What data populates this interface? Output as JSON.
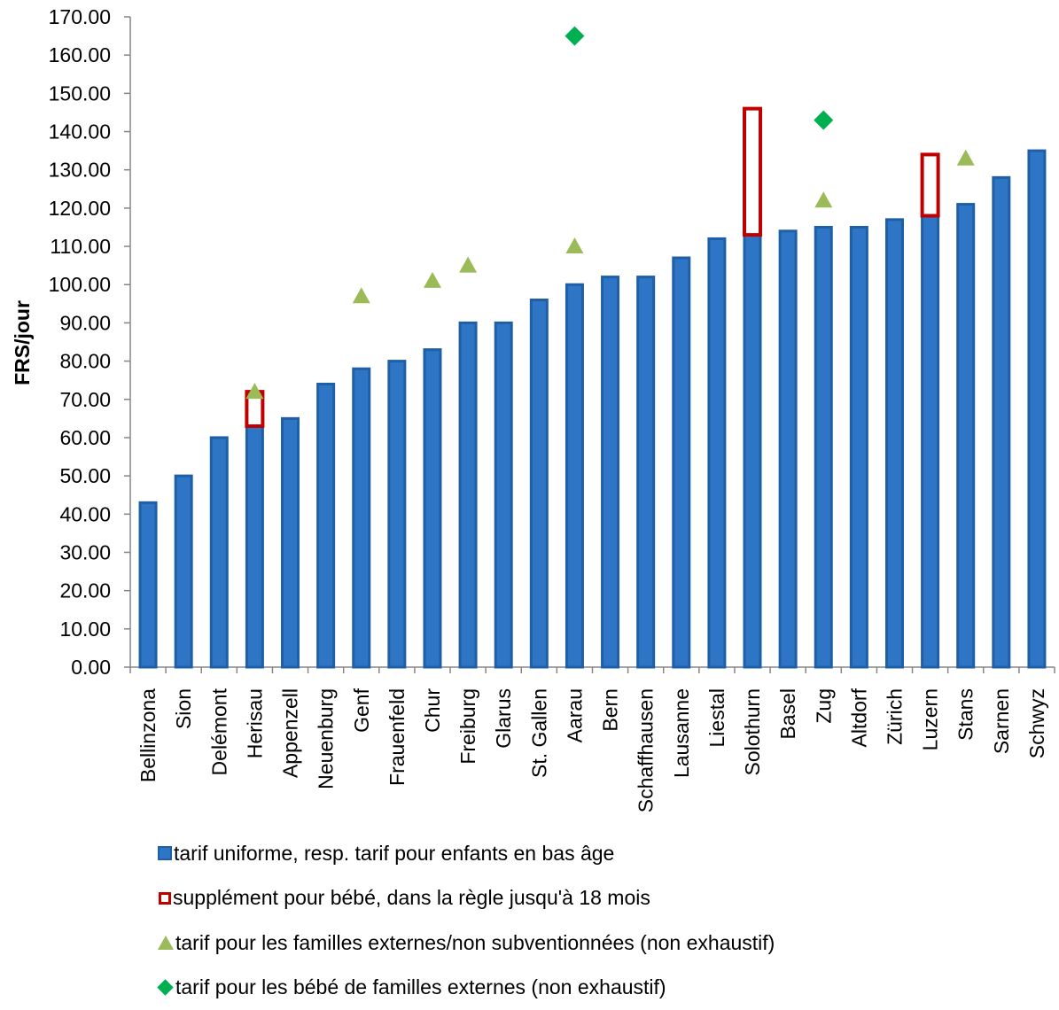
{
  "chart_data": {
    "type": "bar",
    "ylabel": "FRS/jour",
    "ylim": [
      0,
      170
    ],
    "ytick_step": 10,
    "ytick_decimals": 2,
    "grid": false,
    "categories": [
      "Bellinzona",
      "Sion",
      "Delémont",
      "Herisau",
      "Appenzell",
      "Neuenburg",
      "Genf",
      "Frauenfeld",
      "Chur",
      "Freiburg",
      "Glarus",
      "St. Gallen",
      "Aarau",
      "Bern",
      "Schaffhausen",
      "Lausanne",
      "Liestal",
      "Solothurn",
      "Basel",
      "Zug",
      "Altdorf",
      "Zürich",
      "Luzern",
      "Stans",
      "Sarnen",
      "Schwyz"
    ],
    "series": [
      {
        "name": "tarif uniforme, resp. tarif pour enfants en bas âge",
        "kind": "bar",
        "color": "#2E75C6",
        "values": [
          43,
          50,
          60,
          63,
          65,
          74,
          78,
          80,
          83,
          90,
          90,
          96,
          100,
          102,
          102,
          107,
          112,
          113,
          114,
          115,
          115,
          117,
          118,
          121,
          128,
          135
        ]
      },
      {
        "name": "supplément pour bébé, dans la règle jusqu'à 18 mois",
        "kind": "range",
        "color": "#C00000",
        "ranges": [
          {
            "category": "Herisau",
            "low": 63,
            "high": 72
          },
          {
            "category": "Solothurn",
            "low": 113,
            "high": 146
          },
          {
            "category": "Luzern",
            "low": 118,
            "high": 134
          }
        ]
      },
      {
        "name": "tarif pour les familles externes/non subventionnées (non exhaustif)",
        "kind": "triangle",
        "color": "#9BBB59",
        "points": [
          {
            "category": "Herisau",
            "value": 72
          },
          {
            "category": "Genf",
            "value": 97
          },
          {
            "category": "Chur",
            "value": 101
          },
          {
            "category": "Freiburg",
            "value": 105
          },
          {
            "category": "Aarau",
            "value": 110
          },
          {
            "category": "Zug",
            "value": 122
          },
          {
            "category": "Stans",
            "value": 133
          }
        ]
      },
      {
        "name": "tarif pour les bébé de familles externes (non exhaustif)",
        "kind": "diamond",
        "color": "#00B050",
        "points": [
          {
            "category": "Aarau",
            "value": 165
          },
          {
            "category": "Zug",
            "value": 143
          }
        ]
      }
    ],
    "legend_position": "bottom"
  }
}
